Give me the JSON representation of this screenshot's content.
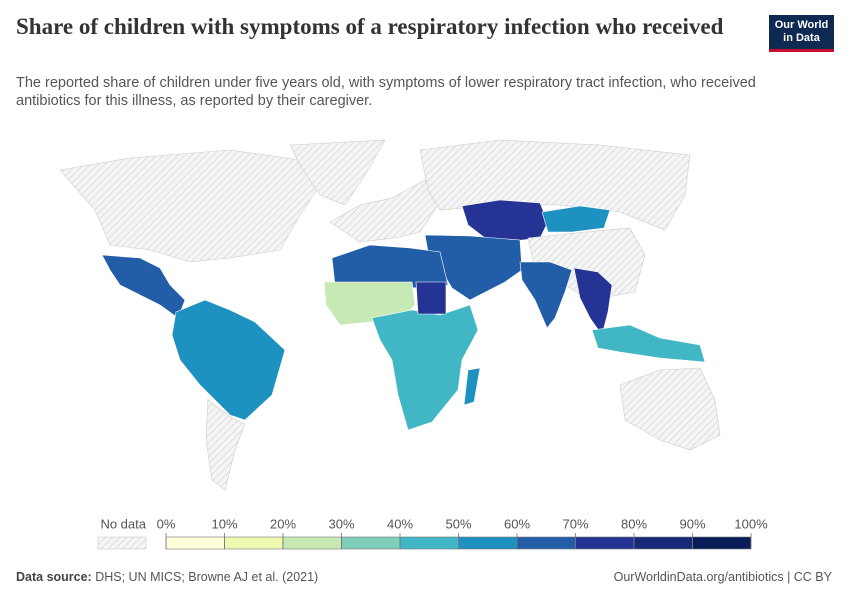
{
  "header": {
    "title": "Share of children with symptoms of a respiratory infection who received",
    "subtitle": "The reported share of children under five years old, with symptoms of lower respiratory tract infection, who received antibiotics for this illness, as reported by their caregiver.",
    "logo": [
      "Our World",
      "in Data"
    ]
  },
  "legend": {
    "no_data": "No data",
    "ticks": [
      {
        "value": 0,
        "label": "0%"
      },
      {
        "value": 10,
        "label": "10%"
      },
      {
        "value": 20,
        "label": "20%"
      },
      {
        "value": 30,
        "label": "30%"
      },
      {
        "value": 40,
        "label": "40%"
      },
      {
        "value": 50,
        "label": "50%"
      },
      {
        "value": 60,
        "label": "60%"
      },
      {
        "value": 70,
        "label": "70%"
      },
      {
        "value": 80,
        "label": "80%"
      },
      {
        "value": 90,
        "label": "90%"
      },
      {
        "value": 100,
        "label": "100%"
      }
    ],
    "colors": [
      "#ffffd9",
      "#edf8b1",
      "#c7e9b4",
      "#7fcdbb",
      "#41b6c4",
      "#1d91c0",
      "#225ea8",
      "#253494",
      "#172976",
      "#081d58"
    ]
  },
  "footer": {
    "source_label": "Data source:",
    "source": "DHS; UN MICS; Browne AJ et al. (2021)",
    "link": "OurWorldinData.org/antibiotics | CC BY"
  }
}
